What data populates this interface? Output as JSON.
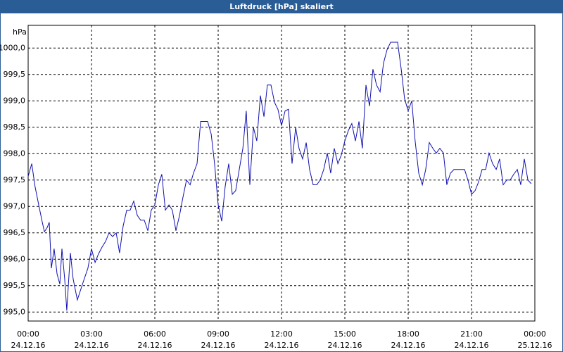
{
  "chart_data": {
    "type": "line",
    "title": "Luftdruck [hPa] skaliert",
    "y_label": "hPa",
    "x": [
      0,
      0.17,
      0.33,
      0.5,
      0.67,
      0.77,
      0.9,
      1.0,
      1.1,
      1.23,
      1.37,
      1.5,
      1.6,
      1.73,
      1.83,
      2.0,
      2.13,
      2.33,
      2.6,
      2.83,
      3.0,
      3.17,
      3.33,
      3.5,
      3.67,
      3.83,
      4.0,
      4.17,
      4.33,
      4.5,
      4.67,
      4.83,
      5.0,
      5.17,
      5.33,
      5.5,
      5.67,
      5.83,
      6.0,
      6.17,
      6.33,
      6.5,
      6.67,
      6.83,
      7.0,
      7.17,
      7.33,
      7.5,
      7.67,
      7.83,
      8.0,
      8.17,
      8.33,
      8.5,
      8.67,
      8.83,
      9.0,
      9.17,
      9.33,
      9.5,
      9.67,
      9.83,
      10.0,
      10.17,
      10.33,
      10.5,
      10.67,
      10.83,
      11.0,
      11.17,
      11.33,
      11.5,
      11.67,
      11.83,
      12.0,
      12.17,
      12.33,
      12.5,
      12.67,
      12.83,
      13.0,
      13.17,
      13.33,
      13.5,
      13.67,
      13.83,
      14.0,
      14.17,
      14.33,
      14.5,
      14.67,
      14.83,
      15.0,
      15.17,
      15.33,
      15.5,
      15.67,
      15.83,
      16.0,
      16.17,
      16.33,
      16.5,
      16.67,
      16.83,
      17.0,
      17.17,
      17.33,
      17.5,
      17.67,
      17.83,
      18.0,
      18.17,
      18.33,
      18.5,
      18.67,
      18.83,
      19.0,
      19.17,
      19.33,
      19.5,
      19.67,
      19.83,
      20.0,
      20.17,
      20.33,
      20.5,
      20.67,
      20.83,
      21.0,
      21.17,
      21.33,
      21.5,
      21.67,
      21.83,
      22.0,
      22.17,
      22.33,
      22.5,
      22.67,
      22.83,
      23.0,
      23.17,
      23.33,
      23.5,
      23.67,
      23.83
    ],
    "series": [
      {
        "name": "Luftdruck",
        "color": "#1010b0",
        "values": [
          997.57,
          997.81,
          997.37,
          997.03,
          996.7,
          996.52,
          996.6,
          996.7,
          995.83,
          996.2,
          995.72,
          995.53,
          996.2,
          995.63,
          995.03,
          996.12,
          995.63,
          995.23,
          995.56,
          995.83,
          996.2,
          995.94,
          996.1,
          996.23,
          996.34,
          996.5,
          996.43,
          996.5,
          996.12,
          996.63,
          996.93,
          996.93,
          997.1,
          996.83,
          996.74,
          996.74,
          996.54,
          996.93,
          997.03,
          997.41,
          997.61,
          996.93,
          997.03,
          996.93,
          996.54,
          996.83,
          997.17,
          997.5,
          997.41,
          997.63,
          997.81,
          998.61,
          998.61,
          998.61,
          998.37,
          997.81,
          997.03,
          996.72,
          997.37,
          997.81,
          997.23,
          997.3,
          997.7,
          998.1,
          998.81,
          997.41,
          998.5,
          998.24,
          999.1,
          998.7,
          999.3,
          999.3,
          998.97,
          998.84,
          998.53,
          998.81,
          998.84,
          997.81,
          998.5,
          998.1,
          997.9,
          998.21,
          997.7,
          997.41,
          997.41,
          997.5,
          997.7,
          998.01,
          997.63,
          998.1,
          997.81,
          997.97,
          998.24,
          998.44,
          998.57,
          998.24,
          998.61,
          998.1,
          999.3,
          998.9,
          999.6,
          999.3,
          999.17,
          999.71,
          999.97,
          1000.11,
          1000.11,
          1000.11,
          999.6,
          999.04,
          998.81,
          999.0,
          998.24,
          997.63,
          997.41,
          997.7,
          998.21,
          998.1,
          998.01,
          998.1,
          998.01,
          997.41,
          997.63,
          997.7,
          997.7,
          997.7,
          997.7,
          997.5,
          997.23,
          997.3,
          997.46,
          997.7,
          997.7,
          998.01,
          997.81,
          997.7,
          997.9,
          997.41,
          997.5,
          997.5,
          997.61,
          997.7,
          997.41,
          997.9,
          997.5,
          997.43
        ]
      }
    ],
    "xlim": [
      0,
      24
    ],
    "xticks": [
      {
        "value": 0,
        "label": [
          "00:00",
          "24.12.16"
        ]
      },
      {
        "value": 3,
        "label": [
          "03:00",
          "24.12.16"
        ]
      },
      {
        "value": 6,
        "label": [
          "06:00",
          "24.12.16"
        ]
      },
      {
        "value": 9,
        "label": [
          "09:00",
          "24.12.16"
        ]
      },
      {
        "value": 12,
        "label": [
          "12:00",
          "24.12.16"
        ]
      },
      {
        "value": 15,
        "label": [
          "15:00",
          "24.12.16"
        ]
      },
      {
        "value": 18,
        "label": [
          "18:00",
          "24.12.16"
        ]
      },
      {
        "value": 21,
        "label": [
          "21:00",
          "24.12.16"
        ]
      },
      {
        "value": 24,
        "label": [
          "00:00",
          "25.12.16"
        ]
      }
    ],
    "ylim": [
      994.83,
      1000.43
    ],
    "yticks": [
      {
        "value": 995,
        "label": "995,0"
      },
      {
        "value": 995.5,
        "label": "995,5"
      },
      {
        "value": 996,
        "label": "996,0"
      },
      {
        "value": 996.5,
        "label": "996,5"
      },
      {
        "value": 997,
        "label": "997,0"
      },
      {
        "value": 997.5,
        "label": "997,5"
      },
      {
        "value": 998,
        "label": "998,0"
      },
      {
        "value": 998.5,
        "label": "998,5"
      },
      {
        "value": 999,
        "label": "999,0"
      },
      {
        "value": 999.5,
        "label": "999,5"
      },
      {
        "value": 1000,
        "label": "1000,0"
      }
    ],
    "grid": true
  }
}
